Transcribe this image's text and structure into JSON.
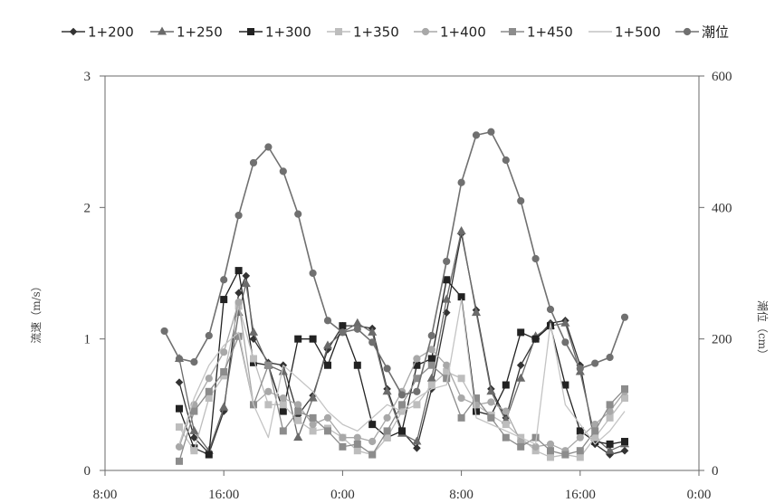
{
  "chart_data": {
    "type": "line",
    "x_axis": {
      "tick_labels": [
        "8:00",
        "16:00",
        "0:00",
        "8:00",
        "16:00",
        "0:00"
      ],
      "tick_hours": [
        0,
        8,
        16,
        24,
        32,
        40
      ],
      "range_hours": [
        0,
        40
      ]
    },
    "y_left": {
      "label": "流速（m/s）",
      "ticks": [
        0,
        1,
        2,
        3
      ],
      "range": [
        0,
        3
      ]
    },
    "y_right": {
      "label": "潮位（cm）",
      "ticks": [
        0,
        200,
        400,
        600
      ],
      "range": [
        0,
        600
      ]
    },
    "legend_position": "top",
    "grid": false,
    "series": [
      {
        "name": "1+200",
        "axis": "left",
        "color": "#333333",
        "marker": "diamond",
        "points": [
          [
            5,
            0.67
          ],
          [
            6,
            0.25
          ],
          [
            7,
            0.13
          ],
          [
            8,
            0.45
          ],
          [
            9,
            1.35
          ],
          [
            9.5,
            1.48
          ],
          [
            10,
            1.0
          ],
          [
            11,
            0.82
          ],
          [
            12,
            0.8
          ],
          [
            13,
            0.42
          ],
          [
            14,
            0.57
          ],
          [
            15,
            0.92
          ],
          [
            16,
            1.1
          ],
          [
            17,
            1.1
          ],
          [
            18,
            1.08
          ],
          [
            19,
            0.62
          ],
          [
            20,
            0.3
          ],
          [
            21,
            0.17
          ],
          [
            22,
            0.62
          ],
          [
            23,
            1.2
          ],
          [
            24,
            1.8
          ],
          [
            25,
            1.22
          ],
          [
            26,
            0.62
          ],
          [
            27,
            0.4
          ],
          [
            28,
            0.8
          ],
          [
            29,
            1.0
          ],
          [
            30,
            1.12
          ],
          [
            31,
            1.14
          ],
          [
            32,
            0.8
          ],
          [
            33,
            0.2
          ],
          [
            34,
            0.12
          ],
          [
            35,
            0.15
          ]
        ]
      },
      {
        "name": "1+250",
        "axis": "left",
        "color": "#6a6a6a",
        "marker": "triangle",
        "points": [
          [
            5,
            0.85
          ],
          [
            6,
            0.3
          ],
          [
            7,
            0.15
          ],
          [
            8,
            0.48
          ],
          [
            9,
            1.2
          ],
          [
            9.5,
            1.42
          ],
          [
            10,
            1.05
          ],
          [
            11,
            0.8
          ],
          [
            12,
            0.75
          ],
          [
            13,
            0.25
          ],
          [
            14,
            0.55
          ],
          [
            15,
            0.95
          ],
          [
            16,
            1.05
          ],
          [
            17,
            1.12
          ],
          [
            18,
            1.05
          ],
          [
            19,
            0.6
          ],
          [
            20,
            0.28
          ],
          [
            21,
            0.22
          ],
          [
            22,
            0.7
          ],
          [
            23,
            1.3
          ],
          [
            24,
            1.82
          ],
          [
            25,
            1.2
          ],
          [
            26,
            0.6
          ],
          [
            27,
            0.38
          ],
          [
            28,
            0.7
          ],
          [
            29,
            1.02
          ],
          [
            30,
            1.1
          ],
          [
            31,
            1.12
          ],
          [
            32,
            0.75
          ],
          [
            33,
            0.25
          ],
          [
            34,
            0.15
          ],
          [
            35,
            0.2
          ]
        ]
      },
      {
        "name": "1+300",
        "axis": "left",
        "color": "#222222",
        "marker": "square",
        "points": [
          [
            5,
            0.47
          ],
          [
            6,
            0.17
          ],
          [
            7,
            0.12
          ],
          [
            8,
            1.3
          ],
          [
            9,
            1.52
          ],
          [
            10,
            0.82
          ],
          [
            11,
            0.8
          ],
          [
            12,
            0.45
          ],
          [
            13,
            1.0
          ],
          [
            14,
            1.0
          ],
          [
            15,
            0.8
          ],
          [
            16,
            1.1
          ],
          [
            17,
            0.8
          ],
          [
            18,
            0.35
          ],
          [
            19,
            0.25
          ],
          [
            20,
            0.3
          ],
          [
            21,
            0.8
          ],
          [
            22,
            0.85
          ],
          [
            23,
            1.45
          ],
          [
            24,
            1.32
          ],
          [
            25,
            0.45
          ],
          [
            26,
            0.42
          ],
          [
            27,
            0.65
          ],
          [
            28,
            1.05
          ],
          [
            29,
            1.0
          ],
          [
            30,
            1.1
          ],
          [
            31,
            0.65
          ],
          [
            32,
            0.3
          ],
          [
            33,
            0.22
          ],
          [
            34,
            0.2
          ],
          [
            35,
            0.22
          ]
        ]
      },
      {
        "name": "1+350",
        "axis": "left",
        "color": "#bdbdbd",
        "marker": "square",
        "points": [
          [
            5,
            0.33
          ],
          [
            6,
            0.15
          ],
          [
            7,
            0.55
          ],
          [
            8,
            0.72
          ],
          [
            9,
            1.25
          ],
          [
            10,
            0.85
          ],
          [
            11,
            0.5
          ],
          [
            12,
            0.5
          ],
          [
            13,
            0.38
          ],
          [
            14,
            0.3
          ],
          [
            15,
            0.32
          ],
          [
            16,
            0.25
          ],
          [
            17,
            0.15
          ],
          [
            18,
            0.12
          ],
          [
            19,
            0.25
          ],
          [
            20,
            0.45
          ],
          [
            21,
            0.5
          ],
          [
            22,
            0.65
          ],
          [
            23,
            0.75
          ],
          [
            24,
            0.7
          ],
          [
            25,
            0.5
          ],
          [
            26,
            0.42
          ],
          [
            27,
            0.35
          ],
          [
            28,
            0.25
          ],
          [
            29,
            0.15
          ],
          [
            30,
            0.1
          ],
          [
            31,
            0.12
          ],
          [
            32,
            0.1
          ],
          [
            33,
            0.25
          ],
          [
            34,
            0.4
          ],
          [
            35,
            0.55
          ]
        ]
      },
      {
        "name": "1+400",
        "axis": "left",
        "color": "#a8a8a8",
        "marker": "circle",
        "points": [
          [
            5,
            0.18
          ],
          [
            6,
            0.5
          ],
          [
            7,
            0.7
          ],
          [
            8,
            0.9
          ],
          [
            9,
            1.28
          ],
          [
            10,
            0.5
          ],
          [
            11,
            0.6
          ],
          [
            12,
            0.55
          ],
          [
            13,
            0.5
          ],
          [
            14,
            0.35
          ],
          [
            15,
            0.4
          ],
          [
            16,
            0.25
          ],
          [
            17,
            0.25
          ],
          [
            18,
            0.22
          ],
          [
            19,
            0.4
          ],
          [
            20,
            0.6
          ],
          [
            21,
            0.85
          ],
          [
            22,
            0.92
          ],
          [
            23,
            0.8
          ],
          [
            24,
            0.55
          ],
          [
            25,
            0.5
          ],
          [
            26,
            0.52
          ],
          [
            27,
            0.45
          ],
          [
            28,
            0.22
          ],
          [
            29,
            0.18
          ],
          [
            30,
            0.2
          ],
          [
            31,
            0.15
          ],
          [
            32,
            0.25
          ],
          [
            33,
            0.35
          ],
          [
            34,
            0.45
          ],
          [
            35,
            0.6
          ]
        ]
      },
      {
        "name": "1+450",
        "axis": "left",
        "color": "#8c8c8c",
        "marker": "square",
        "points": [
          [
            5,
            0.07
          ],
          [
            6,
            0.45
          ],
          [
            7,
            0.6
          ],
          [
            8,
            0.75
          ],
          [
            9,
            1.02
          ],
          [
            10,
            0.5
          ],
          [
            11,
            0.8
          ],
          [
            12,
            0.3
          ],
          [
            13,
            0.45
          ],
          [
            14,
            0.4
          ],
          [
            15,
            0.3
          ],
          [
            16,
            0.18
          ],
          [
            17,
            0.2
          ],
          [
            18,
            0.12
          ],
          [
            19,
            0.3
          ],
          [
            20,
            0.5
          ],
          [
            21,
            0.7
          ],
          [
            22,
            0.8
          ],
          [
            23,
            0.7
          ],
          [
            24,
            0.4
          ],
          [
            25,
            0.55
          ],
          [
            26,
            0.4
          ],
          [
            27,
            0.25
          ],
          [
            28,
            0.18
          ],
          [
            29,
            0.25
          ],
          [
            30,
            0.15
          ],
          [
            31,
            0.12
          ],
          [
            32,
            0.15
          ],
          [
            33,
            0.3
          ],
          [
            34,
            0.5
          ],
          [
            35,
            0.62
          ]
        ]
      },
      {
        "name": "1+500",
        "axis": "left",
        "color": "#c4c4c4",
        "marker": "none",
        "points": [
          [
            5,
            0.2
          ],
          [
            6,
            0.55
          ],
          [
            7,
            0.8
          ],
          [
            8,
            0.95
          ],
          [
            9,
            1.05
          ],
          [
            10,
            0.5
          ],
          [
            11,
            0.25
          ],
          [
            12,
            0.8
          ],
          [
            13,
            0.7
          ],
          [
            14,
            0.6
          ],
          [
            15,
            0.45
          ],
          [
            16,
            0.35
          ],
          [
            17,
            0.3
          ],
          [
            18,
            0.4
          ],
          [
            19,
            0.5
          ],
          [
            20,
            0.45
          ],
          [
            21,
            0.55
          ],
          [
            22,
            0.62
          ],
          [
            23,
            0.65
          ],
          [
            24,
            1.3
          ],
          [
            25,
            0.4
          ],
          [
            26,
            0.35
          ],
          [
            27,
            0.3
          ],
          [
            28,
            0.25
          ],
          [
            29,
            0.2
          ],
          [
            30,
            1.12
          ],
          [
            31,
            0.5
          ],
          [
            32,
            0.35
          ],
          [
            33,
            0.2
          ],
          [
            34,
            0.3
          ],
          [
            35,
            0.45
          ]
        ]
      },
      {
        "name": "潮位",
        "axis": "right",
        "color": "#707070",
        "marker": "circle",
        "points": [
          [
            4,
            212
          ],
          [
            5,
            170
          ],
          [
            6,
            165
          ],
          [
            7,
            205
          ],
          [
            8,
            290
          ],
          [
            9,
            388
          ],
          [
            10,
            468
          ],
          [
            11,
            492
          ],
          [
            12,
            455
          ],
          [
            13,
            390
          ],
          [
            14,
            300
          ],
          [
            15,
            228
          ],
          [
            16,
            210
          ],
          [
            17,
            215
          ],
          [
            18,
            195
          ],
          [
            19,
            155
          ],
          [
            20,
            115
          ],
          [
            21,
            120
          ],
          [
            22,
            205
          ],
          [
            23,
            318
          ],
          [
            24,
            438
          ],
          [
            25,
            510
          ],
          [
            26,
            515
          ],
          [
            27,
            472
          ],
          [
            28,
            410
          ],
          [
            29,
            322
          ],
          [
            30,
            245
          ],
          [
            31,
            195
          ],
          [
            32,
            155
          ],
          [
            33,
            163
          ],
          [
            34,
            172
          ],
          [
            35,
            233
          ]
        ]
      }
    ]
  }
}
